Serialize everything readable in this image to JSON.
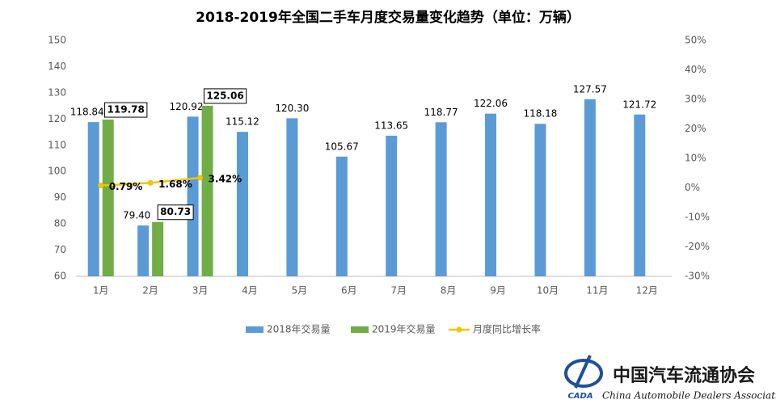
{
  "chart_data": {
    "type": "bar",
    "title": "2018-2019年全国二手车月度交易量变化趋势（单位：万辆）",
    "categories": [
      "1月",
      "2月",
      "3月",
      "4月",
      "5月",
      "6月",
      "7月",
      "8月",
      "9月",
      "10月",
      "11月",
      "12月"
    ],
    "series": [
      {
        "name": "2018年交易量",
        "type": "bar",
        "color": "#5b9bd5",
        "values": [
          118.84,
          79.4,
          120.92,
          115.12,
          120.3,
          105.67,
          113.65,
          118.77,
          122.06,
          118.18,
          127.57,
          121.72
        ],
        "value_labels": [
          "118.84",
          "79.40",
          "120.92",
          "115.12",
          "120.30",
          "105.67",
          "113.65",
          "118.77",
          "122.06",
          "118.18",
          "127.57",
          "121.72"
        ]
      },
      {
        "name": "2019年交易量",
        "type": "bar",
        "color": "#70ad47",
        "values": [
          119.78,
          80.73,
          125.06,
          null,
          null,
          null,
          null,
          null,
          null,
          null,
          null,
          null
        ],
        "value_labels": [
          "119.78",
          "80.73",
          "125.06",
          null,
          null,
          null,
          null,
          null,
          null,
          null,
          null,
          null
        ]
      },
      {
        "name": "月度同比增长率",
        "type": "line",
        "axis": "y2",
        "color": "#f5c400",
        "values": [
          0.79,
          1.68,
          3.42,
          null,
          null,
          null,
          null,
          null,
          null,
          null,
          null,
          null
        ],
        "value_labels": [
          "0.79%",
          "1.68%",
          "3.42%",
          null,
          null,
          null,
          null,
          null,
          null,
          null,
          null,
          null
        ]
      }
    ],
    "ylim": [
      60,
      150
    ],
    "yticks": [
      60,
      70,
      80,
      90,
      100,
      110,
      120,
      130,
      140,
      150
    ],
    "y2lim": [
      -30,
      50
    ],
    "y2ticks": [
      {
        "value": -30,
        "label": "-30%"
      },
      {
        "value": -20,
        "label": "-20%"
      },
      {
        "value": -10,
        "label": "-10%"
      },
      {
        "value": 0,
        "label": "0%"
      },
      {
        "value": 10,
        "label": "10%"
      },
      {
        "value": 20,
        "label": "20%"
      },
      {
        "value": 30,
        "label": "30%"
      },
      {
        "value": 40,
        "label": "40%"
      },
      {
        "value": 50,
        "label": "50%"
      }
    ],
    "legend": "bottom",
    "logo": {
      "abbr": "CADA",
      "name_cn": "中国汽车流通协会",
      "name_en": "China Automobile Dealers Association"
    }
  }
}
